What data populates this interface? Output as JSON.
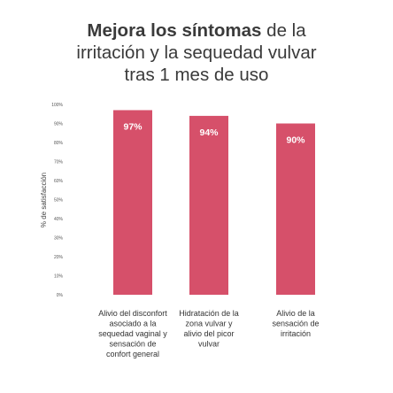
{
  "title": {
    "line1_bold": "Mejora los síntomas",
    "line1_rest": " de la",
    "line2": "irritación y la sequedad vulvar",
    "line3": "tras 1 mes de uso"
  },
  "chart_data": {
    "type": "bar",
    "title": "Mejora los síntomas de la irritación y la sequedad vulvar tras 1 mes de uso",
    "ylabel": "% de satisfacción",
    "xlabel": "",
    "ylim": [
      0,
      100
    ],
    "yticks": [
      "0%",
      "10%",
      "20%",
      "30%",
      "40%",
      "50%",
      "60%",
      "70%",
      "80%",
      "90%",
      "100%"
    ],
    "categories": [
      [
        "Alivio del disconfort",
        "asociado a la",
        "sequedad vaginal y",
        "sensación de",
        "confort general"
      ],
      [
        "Hidratación de la",
        "zona vulvar y",
        "alivio del picor",
        "vulvar"
      ],
      [
        "Alivio de la",
        "sensación de",
        "irritación"
      ]
    ],
    "values": [
      97,
      94,
      90
    ],
    "value_labels": [
      "97%",
      "94%",
      "90%"
    ],
    "bar_color": "#d6506a",
    "grid": false
  }
}
